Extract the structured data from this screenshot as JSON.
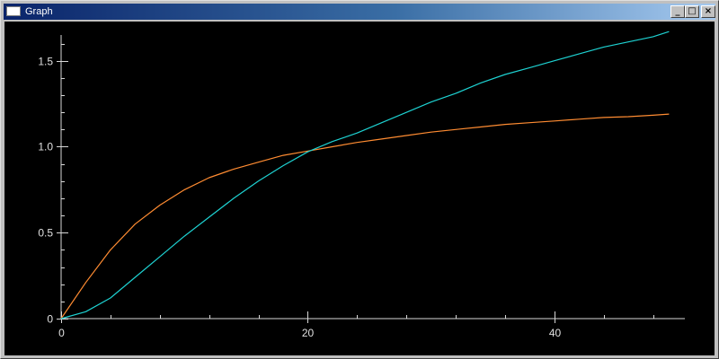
{
  "window": {
    "title": "Graph",
    "buttons": {
      "minimize_icon": "minimize-icon",
      "maximize_icon": "maximize-icon",
      "close_icon": "close-icon"
    }
  },
  "colors": {
    "background": "#000000",
    "axis": "#d8d8d8",
    "series_orange": "#ff8c32",
    "series_cyan": "#1ed2d2"
  },
  "chart_data": {
    "type": "line",
    "title": "",
    "xlabel": "",
    "ylabel": "",
    "xlim": [
      0,
      50
    ],
    "ylim": [
      0,
      1.65
    ],
    "grid": false,
    "x_ticks": [
      {
        "value": 0,
        "label": "0"
      },
      {
        "value": 20,
        "label": "20"
      },
      {
        "value": 40,
        "label": "40"
      }
    ],
    "x_minor_step": 4,
    "y_ticks": [
      {
        "value": 0,
        "label": "0"
      },
      {
        "value": 0.5,
        "label": "0.5"
      },
      {
        "value": 1.0,
        "label": "1.0"
      },
      {
        "value": 1.5,
        "label": "1.5"
      }
    ],
    "y_minor_step": 0.1,
    "series": [
      {
        "color": "#ff8c32",
        "x": [
          0,
          2,
          4,
          6,
          8,
          10,
          12,
          14,
          16,
          18,
          20,
          22,
          24,
          26,
          28,
          30,
          32,
          34,
          36,
          38,
          40,
          42,
          44,
          46,
          48,
          49.3
        ],
        "y": [
          0,
          0.21,
          0.4,
          0.55,
          0.66,
          0.75,
          0.82,
          0.87,
          0.91,
          0.95,
          0.975,
          1.0,
          1.025,
          1.045,
          1.065,
          1.085,
          1.1,
          1.115,
          1.13,
          1.14,
          1.15,
          1.16,
          1.17,
          1.175,
          1.183,
          1.19
        ]
      },
      {
        "color": "#1ed2d2",
        "x": [
          0,
          2,
          4,
          6,
          8,
          10,
          12,
          14,
          16,
          18,
          20,
          22,
          24,
          26,
          28,
          30,
          32,
          34,
          36,
          38,
          40,
          42,
          44,
          46,
          48,
          49.3
        ],
        "y": [
          0,
          0.04,
          0.12,
          0.24,
          0.36,
          0.48,
          0.59,
          0.7,
          0.8,
          0.89,
          0.97,
          1.03,
          1.08,
          1.14,
          1.2,
          1.26,
          1.31,
          1.37,
          1.42,
          1.46,
          1.5,
          1.54,
          1.58,
          1.61,
          1.64,
          1.67
        ]
      }
    ]
  }
}
